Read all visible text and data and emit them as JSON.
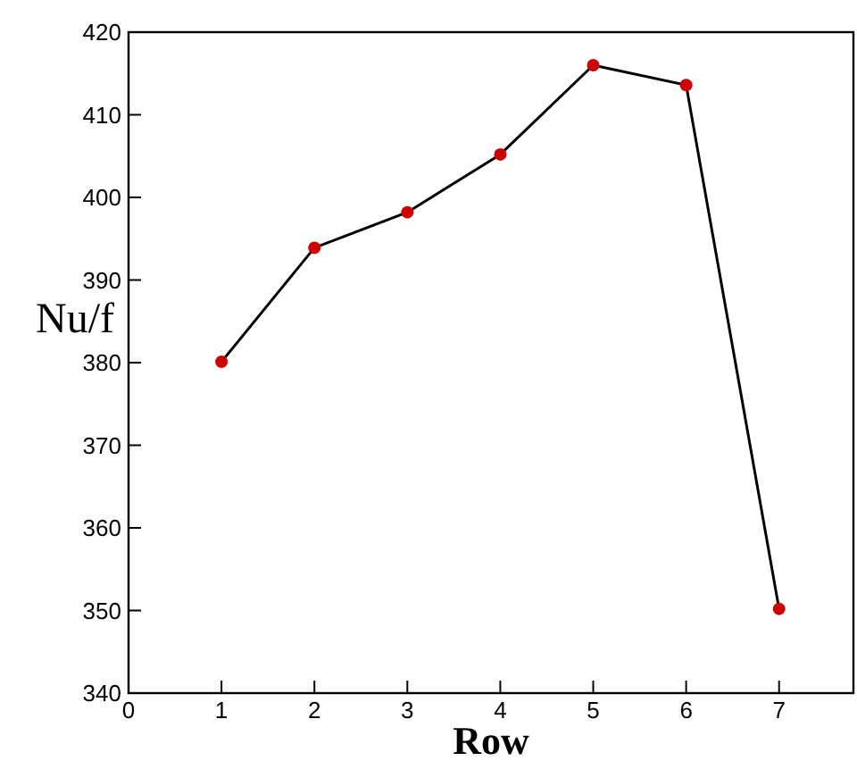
{
  "chart_data": {
    "type": "line",
    "xlabel": "Row",
    "ylabel": "Nu/f",
    "x": [
      1,
      2,
      3,
      4,
      5,
      6,
      7
    ],
    "series": [
      {
        "color": "#cc0000",
        "values": [
          380.1,
          393.9,
          398.2,
          405.2,
          416,
          413.6,
          350.2
        ]
      }
    ],
    "marker": "circle",
    "xlim": [
      0,
      7.8
    ],
    "xticks": [
      0,
      1,
      2,
      3,
      4,
      5,
      6,
      7
    ],
    "ylim": [
      340,
      420
    ],
    "yticks": [
      340,
      350,
      360,
      370,
      380,
      390,
      400,
      410,
      420
    ],
    "grid": false
  }
}
